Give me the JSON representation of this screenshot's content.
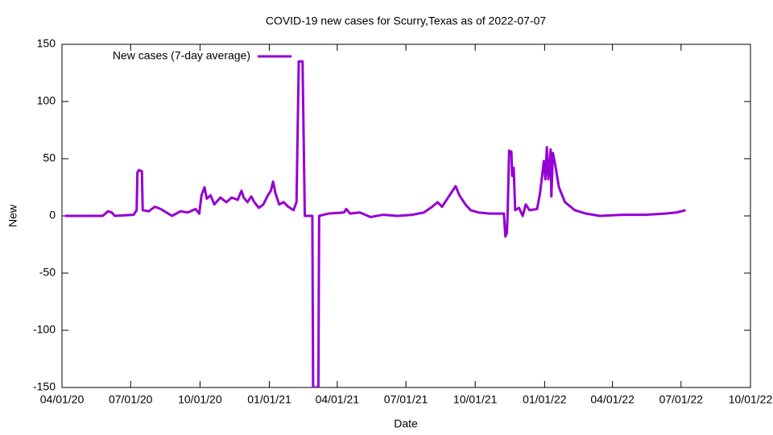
{
  "chart_data": {
    "type": "line",
    "title": "COVID-19 new cases for Scurry,Texas as of 2022-07-07",
    "x_label": "Date",
    "y_label": "New",
    "legend": "top-left",
    "x": [
      "2020-04-05",
      "2020-05-25",
      "2020-06-01",
      "2020-06-06",
      "2020-06-10",
      "2020-07-05",
      "2020-07-09",
      "2020-07-10",
      "2020-07-12",
      "2020-07-16",
      "2020-07-17",
      "2020-07-25",
      "2020-08-02",
      "2020-08-10",
      "2020-08-20",
      "2020-08-25",
      "2020-09-05",
      "2020-09-15",
      "2020-09-25",
      "2020-09-30",
      "2020-10-03",
      "2020-10-07",
      "2020-10-10",
      "2020-10-15",
      "2020-10-20",
      "2020-10-28",
      "2020-11-05",
      "2020-11-12",
      "2020-11-20",
      "2020-11-25",
      "2020-11-28",
      "2020-12-03",
      "2020-12-08",
      "2020-12-12",
      "2020-12-18",
      "2020-12-24",
      "2020-12-30",
      "2021-01-03",
      "2021-01-06",
      "2021-01-09",
      "2021-01-14",
      "2021-01-20",
      "2021-01-26",
      "2021-02-02",
      "2021-02-06",
      "2021-02-09",
      "2021-02-14",
      "2021-02-17",
      "2021-02-27",
      "2021-02-28",
      "2021-03-07",
      "2021-03-08",
      "2021-03-20",
      "2021-04-10",
      "2021-04-13",
      "2021-04-18",
      "2021-05-01",
      "2021-05-15",
      "2021-06-01",
      "2021-06-20",
      "2021-07-10",
      "2021-07-25",
      "2021-08-05",
      "2021-08-12",
      "2021-08-18",
      "2021-08-25",
      "2021-09-01",
      "2021-09-05",
      "2021-09-10",
      "2021-09-18",
      "2021-09-25",
      "2021-10-05",
      "2021-10-20",
      "2021-11-08",
      "2021-11-10",
      "2021-11-12",
      "2021-11-13",
      "2021-11-15",
      "2021-11-18",
      "2021-11-19",
      "2021-11-21",
      "2021-11-23",
      "2021-11-28",
      "2021-12-03",
      "2021-12-07",
      "2021-12-12",
      "2021-12-22",
      "2021-12-26",
      "2021-12-31",
      "2022-01-02",
      "2022-01-04",
      "2022-01-06",
      "2022-01-09",
      "2022-01-10",
      "2022-01-12",
      "2022-01-15",
      "2022-01-20",
      "2022-01-28",
      "2022-02-10",
      "2022-02-25",
      "2022-03-15",
      "2022-04-15",
      "2022-05-15",
      "2022-06-10",
      "2022-06-25",
      "2022-07-07"
    ],
    "series": [
      {
        "name": "New cases (7-day average)",
        "color": "#9400d3",
        "values": [
          0,
          0,
          4,
          3,
          0,
          1,
          5,
          38,
          40,
          39,
          5,
          4,
          8,
          6,
          2,
          0,
          4,
          3,
          6,
          2,
          18,
          25,
          15,
          18,
          10,
          16,
          12,
          16,
          14,
          22,
          16,
          12,
          17,
          12,
          7,
          10,
          18,
          22,
          30,
          20,
          10,
          12,
          8,
          5,
          12,
          135,
          135,
          0,
          0,
          -150,
          -150,
          0,
          2,
          3,
          6,
          2,
          3,
          -1,
          1,
          0,
          1,
          3,
          8,
          12,
          8,
          15,
          22,
          26,
          18,
          10,
          5,
          3,
          2,
          2,
          -18,
          -15,
          3,
          57,
          56,
          35,
          42,
          5,
          7,
          0,
          10,
          5,
          6,
          20,
          48,
          32,
          60,
          32,
          58,
          17,
          55,
          45,
          25,
          12,
          5,
          2,
          0,
          1,
          1,
          2,
          3,
          5
        ]
      }
    ],
    "xlim": [
      "2020-04-01",
      "2022-10-01"
    ],
    "xticks": [
      {
        "value": "2020-04-01",
        "label": "04/01/20"
      },
      {
        "value": "2020-07-01",
        "label": "07/01/20"
      },
      {
        "value": "2020-10-01",
        "label": "10/01/20"
      },
      {
        "value": "2021-01-01",
        "label": "01/01/21"
      },
      {
        "value": "2021-04-01",
        "label": "04/01/21"
      },
      {
        "value": "2021-07-01",
        "label": "07/01/21"
      },
      {
        "value": "2021-10-01",
        "label": "10/01/21"
      },
      {
        "value": "2022-01-01",
        "label": "01/01/22"
      },
      {
        "value": "2022-04-01",
        "label": "04/01/22"
      },
      {
        "value": "2022-07-01",
        "label": "07/01/22"
      },
      {
        "value": "2022-10-01",
        "label": "10/01/22"
      }
    ],
    "ylim": [
      -150,
      150
    ],
    "yticks": [
      -150,
      -100,
      -50,
      0,
      50,
      100,
      150
    ]
  }
}
